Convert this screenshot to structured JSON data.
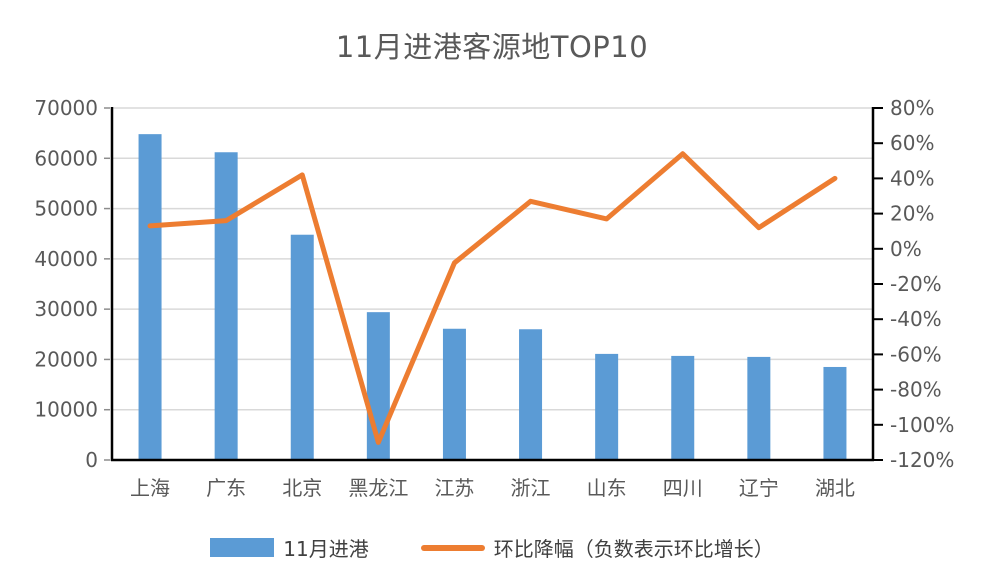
{
  "title": "11月进港客源地TOP10",
  "colors": {
    "bar": "#5B9BD5",
    "line": "#ED7D31",
    "grid": "#D9D9D9",
    "axis": "#000000",
    "tick_minor": "#8C8C8C",
    "text": "#595959",
    "legend_text": "#404040",
    "background": "#FFFFFF"
  },
  "chart_data": {
    "type": "combo-bar-line",
    "title": "11月进港客源地TOP10",
    "categories": [
      "上海",
      "广东",
      "北京",
      "黑龙江",
      "江苏",
      "浙江",
      "山东",
      "四川",
      "辽宁",
      "湖北"
    ],
    "series": [
      {
        "name": "11月进港",
        "type": "bar",
        "axis": "left",
        "color": "#5B9BD5",
        "values": [
          64800,
          61200,
          44800,
          29400,
          26100,
          26000,
          21100,
          20700,
          20500,
          18500
        ]
      },
      {
        "name": "环比降幅（负数表示环比增长）",
        "type": "line",
        "axis": "right",
        "color": "#ED7D31",
        "values_percent": [
          13,
          16,
          42,
          -110,
          -8,
          27,
          17,
          54,
          12,
          40
        ]
      }
    ],
    "left_axis": {
      "min": 0,
      "max": 70000,
      "step": 10000,
      "ticks": [
        "70000",
        "60000",
        "50000",
        "40000",
        "30000",
        "20000",
        "10000",
        "0"
      ]
    },
    "right_axis": {
      "min": -120,
      "max": 80,
      "step": 20,
      "ticks": [
        "80%",
        "60%",
        "40%",
        "20%",
        "0%",
        "-20%",
        "-40%",
        "-60%",
        "-80%",
        "-100%",
        "-120%"
      ]
    },
    "grid": "horizontal-on",
    "legend_position": "bottom"
  }
}
